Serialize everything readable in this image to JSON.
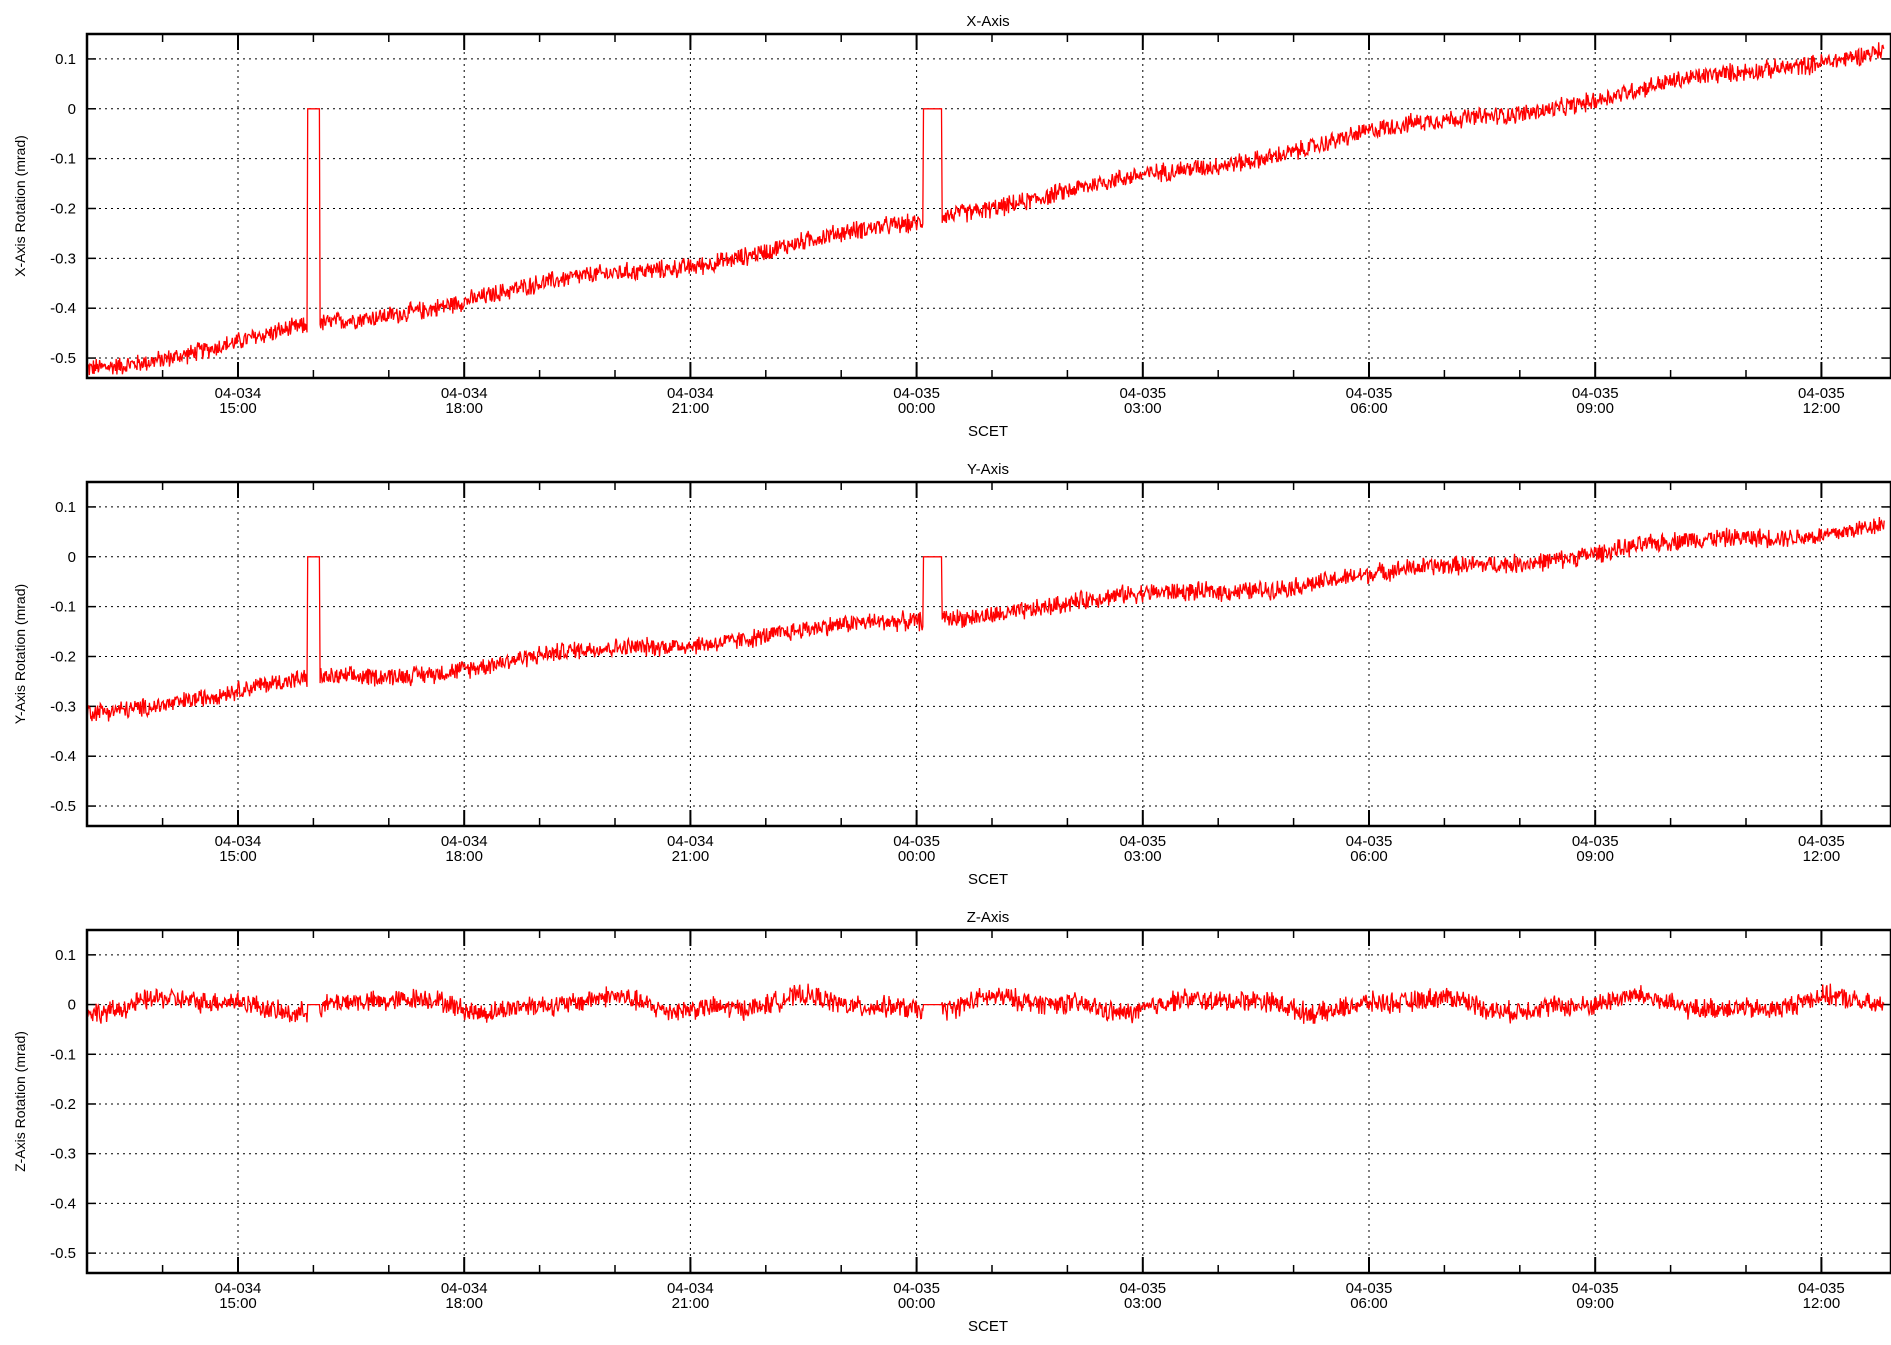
{
  "chart_data": [
    {
      "type": "line",
      "title": "X-Axis",
      "xlabel": "SCET",
      "ylabel": "X-Axis Rotation (mrad)",
      "x_ticks": [
        "04-034 15:00",
        "04-034 18:00",
        "04-034 21:00",
        "04-035 00:00",
        "04-035 03:00",
        "04-035 06:00",
        "04-035 09:00",
        "04-035 12:00"
      ],
      "y_ticks": [
        "0.1",
        "0",
        "-0.1",
        "-0.2",
        "-0.3",
        "-0.4",
        "-0.5"
      ],
      "ylim": [
        -0.54,
        0.15
      ],
      "grid": true,
      "color": "#ff0000",
      "series": [
        {
          "x": [
            "04-034 13:00",
            "04-034 15:00",
            "04-034 16:00",
            "04-034 18:00",
            "04-034 21:00",
            "04-035 00:00",
            "04-035 00:20",
            "04-035 03:00",
            "04-035 06:00",
            "04-035 09:00",
            "04-035 12:00",
            "04-035 12:50"
          ],
          "y": [
            -0.52,
            -0.47,
            -0.44,
            -0.38,
            -0.31,
            -0.23,
            -0.21,
            -0.14,
            -0.05,
            0.02,
            0.1,
            0.12
          ]
        }
      ],
      "dropouts": [
        {
          "start": "04-034 15:55",
          "end": "04-034 16:05",
          "value": 0
        },
        {
          "start": "04-035 00:05",
          "end": "04-035 00:20",
          "value": 0
        }
      ]
    },
    {
      "type": "line",
      "title": "Y-Axis",
      "xlabel": "SCET",
      "ylabel": "Y-Axis Rotation (mrad)",
      "x_ticks": [
        "04-034 15:00",
        "04-034 18:00",
        "04-034 21:00",
        "04-035 00:00",
        "04-035 03:00",
        "04-035 06:00",
        "04-035 09:00",
        "04-035 12:00"
      ],
      "y_ticks": [
        "0.1",
        "0",
        "-0.1",
        "-0.2",
        "-0.3",
        "-0.4",
        "-0.5"
      ],
      "ylim": [
        -0.54,
        0.15
      ],
      "grid": true,
      "color": "#ff0000",
      "series": [
        {
          "x": [
            "04-034 13:00",
            "04-034 15:00",
            "04-034 16:00",
            "04-034 18:00",
            "04-034 21:00",
            "04-035 00:00",
            "04-035 00:20",
            "04-035 03:00",
            "04-035 06:00",
            "04-035 09:00",
            "04-035 12:00",
            "04-035 12:50"
          ],
          "y": [
            -0.31,
            -0.27,
            -0.25,
            -0.22,
            -0.17,
            -0.13,
            -0.12,
            -0.08,
            -0.04,
            0.01,
            0.05,
            0.07
          ]
        }
      ],
      "dropouts": [
        {
          "start": "04-034 15:55",
          "end": "04-034 16:05",
          "value": 0
        },
        {
          "start": "04-035 00:05",
          "end": "04-035 00:20",
          "value": 0
        }
      ]
    },
    {
      "type": "line",
      "title": "Z-Axis",
      "xlabel": "SCET",
      "ylabel": "Z-Axis Rotation (mrad)",
      "x_ticks": [
        "04-034 15:00",
        "04-034 18:00",
        "04-034 21:00",
        "04-035 00:00",
        "04-035 03:00",
        "04-035 06:00",
        "04-035 09:00",
        "04-035 12:00"
      ],
      "y_ticks": [
        "0.1",
        "0",
        "-0.1",
        "-0.2",
        "-0.3",
        "-0.4",
        "-0.5"
      ],
      "ylim": [
        -0.54,
        0.15
      ],
      "grid": true,
      "color": "#ff0000",
      "series": [
        {
          "x": [
            "04-034 13:00",
            "04-034 15:00",
            "04-034 18:00",
            "04-034 21:00",
            "04-035 00:00",
            "04-035 03:00",
            "04-035 06:00",
            "04-035 09:00",
            "04-035 12:00",
            "04-035 12:50"
          ],
          "y": [
            0.0,
            0.0,
            0.0,
            0.0,
            0.0,
            0.0,
            0.0,
            0.0,
            0.0,
            0.0
          ]
        }
      ],
      "dropouts": [
        {
          "start": "04-034 15:55",
          "end": "04-034 16:05",
          "value": 0
        },
        {
          "start": "04-035 00:05",
          "end": "04-035 00:20",
          "value": 0
        }
      ]
    }
  ]
}
